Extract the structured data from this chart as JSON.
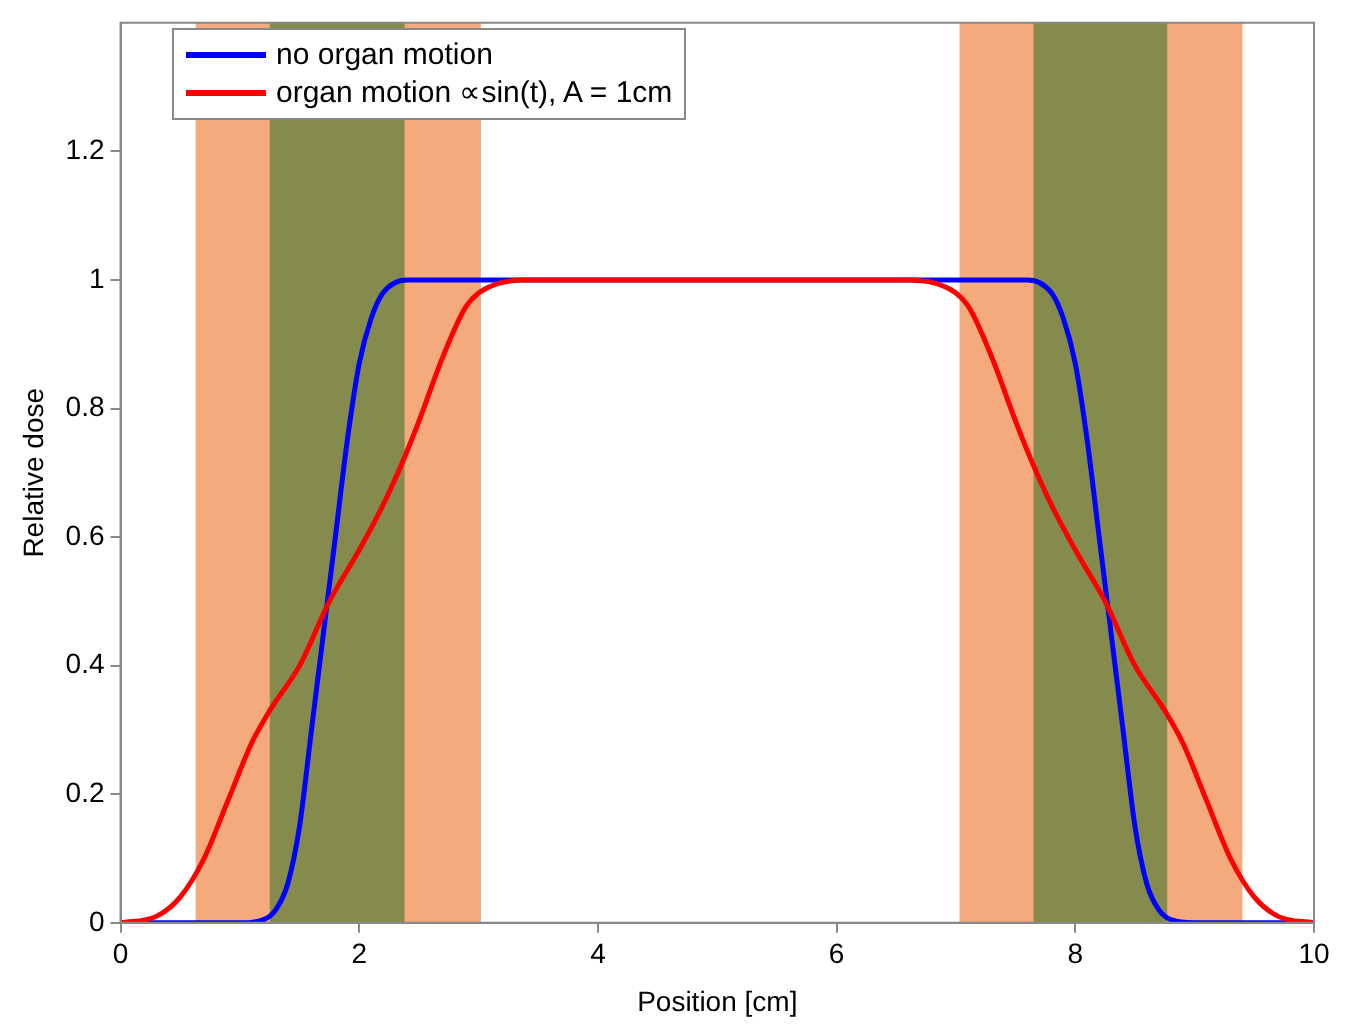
{
  "chart_data": {
    "type": "line",
    "xlabel": "Position [cm]",
    "ylabel": "Relative dose",
    "xlim": [
      0,
      10
    ],
    "ylim": [
      0,
      1.4
    ],
    "xticks": [
      0,
      2,
      4,
      6,
      8,
      10
    ],
    "yticks": [
      0,
      0.2,
      0.4,
      0.6,
      0.8,
      1,
      1.2
    ],
    "grid": false,
    "legend": "top left",
    "marker": "none",
    "line_style": "solid",
    "series": [
      {
        "name": "no organ motion",
        "color": "#0000ff",
        "x": [
          0,
          1,
          1.2,
          1.3,
          1.4,
          1.5,
          1.6,
          1.7,
          1.8,
          1.9,
          2,
          2.1,
          2.2,
          2.4,
          3,
          7,
          7.6,
          7.8,
          7.9,
          8,
          8.1,
          8.2,
          8.3,
          8.4,
          8.5,
          8.6,
          8.7,
          8.8,
          9,
          10
        ],
        "values": [
          0,
          0,
          0.005,
          0.02,
          0.06,
          0.15,
          0.3,
          0.45,
          0.6,
          0.75,
          0.87,
          0.94,
          0.98,
          1,
          1,
          1,
          1,
          0.98,
          0.94,
          0.87,
          0.75,
          0.6,
          0.45,
          0.3,
          0.15,
          0.06,
          0.02,
          0.005,
          0,
          0
        ]
      },
      {
        "name": "organ motion ∝sin(t), A = 1cm",
        "color": "#ff0000",
        "x": [
          0,
          0.3,
          0.5,
          0.7,
          0.9,
          1.1,
          1.25,
          1.5,
          1.75,
          2,
          2.2,
          2.37,
          2.5,
          2.7,
          2.9,
          3.1,
          3.4,
          6.6,
          6.9,
          7.1,
          7.3,
          7.5,
          7.63,
          7.8,
          8,
          8.25,
          8.5,
          8.75,
          8.9,
          9.1,
          9.3,
          9.5,
          9.7,
          10
        ],
        "values": [
          0,
          0.01,
          0.04,
          0.1,
          0.19,
          0.28,
          0.33,
          0.4,
          0.5,
          0.58,
          0.65,
          0.72,
          0.78,
          0.88,
          0.96,
          0.99,
          1,
          1,
          0.99,
          0.96,
          0.88,
          0.78,
          0.72,
          0.65,
          0.58,
          0.5,
          0.4,
          0.33,
          0.28,
          0.19,
          0.1,
          0.04,
          0.01,
          0
        ]
      }
    ],
    "bands": [
      {
        "axis": "x",
        "from": 0.63,
        "to": 3.02,
        "color": "#f4aa7c"
      },
      {
        "axis": "x",
        "from": 1.25,
        "to": 2.38,
        "color": "#848b4c"
      },
      {
        "axis": "x",
        "from": 7.03,
        "to": 9.4,
        "color": "#f4aa7c"
      },
      {
        "axis": "x",
        "from": 7.65,
        "to": 8.77,
        "color": "#848b4c"
      }
    ]
  }
}
